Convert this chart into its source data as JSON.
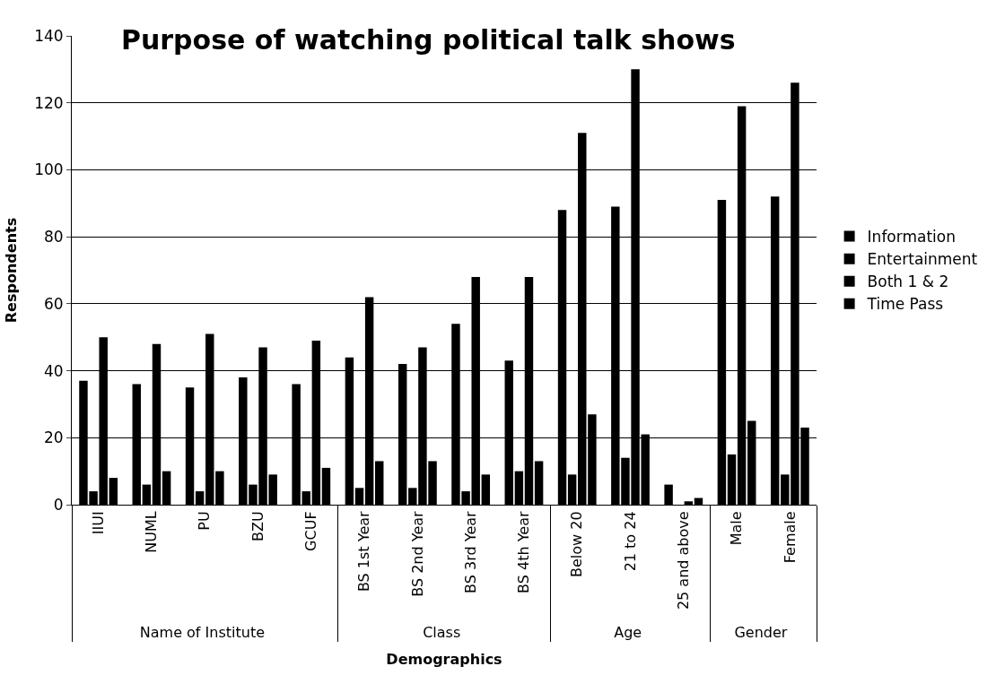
{
  "chart_data": {
    "type": "bar",
    "title": "Purpose of watching political talk shows",
    "xlabel": "Demographics",
    "ylabel": "Respondents",
    "categories": [
      "IIUI",
      "NUML",
      "PU",
      "BZU",
      "GCUF",
      "BS 1st Year",
      "BS 2nd Year",
      "BS 3rd Year",
      "BS 4th Year",
      "Below 20",
      "21 to 24",
      "25 and above",
      "Male",
      "Female"
    ],
    "series": [
      {
        "name": "Information",
        "color": "#000000",
        "values": [
          37,
          36,
          35,
          38,
          36,
          44,
          42,
          54,
          43,
          88,
          89,
          6,
          91,
          92
        ]
      },
      {
        "name": "Entertainment",
        "color": "#000000",
        "values": [
          4,
          6,
          4,
          6,
          4,
          5,
          5,
          4,
          10,
          9,
          14,
          0,
          15,
          9
        ]
      },
      {
        "name": "Both 1 & 2",
        "color": "#000000",
        "values": [
          50,
          48,
          51,
          47,
          49,
          62,
          47,
          68,
          68,
          111,
          130,
          1,
          119,
          126
        ]
      },
      {
        "name": "Time Pass",
        "color": "#000000",
        "values": [
          8,
          10,
          10,
          9,
          11,
          13,
          13,
          9,
          13,
          27,
          21,
          2,
          25,
          23
        ]
      }
    ],
    "annotations": [
      "Name of Institute",
      "Class",
      "Age",
      "Gender"
    ],
    "ylim": [
      0,
      140
    ],
    "yticks": [
      0,
      20,
      40,
      60,
      80,
      100,
      120,
      140
    ],
    "grid": "y",
    "legend": "right"
  }
}
